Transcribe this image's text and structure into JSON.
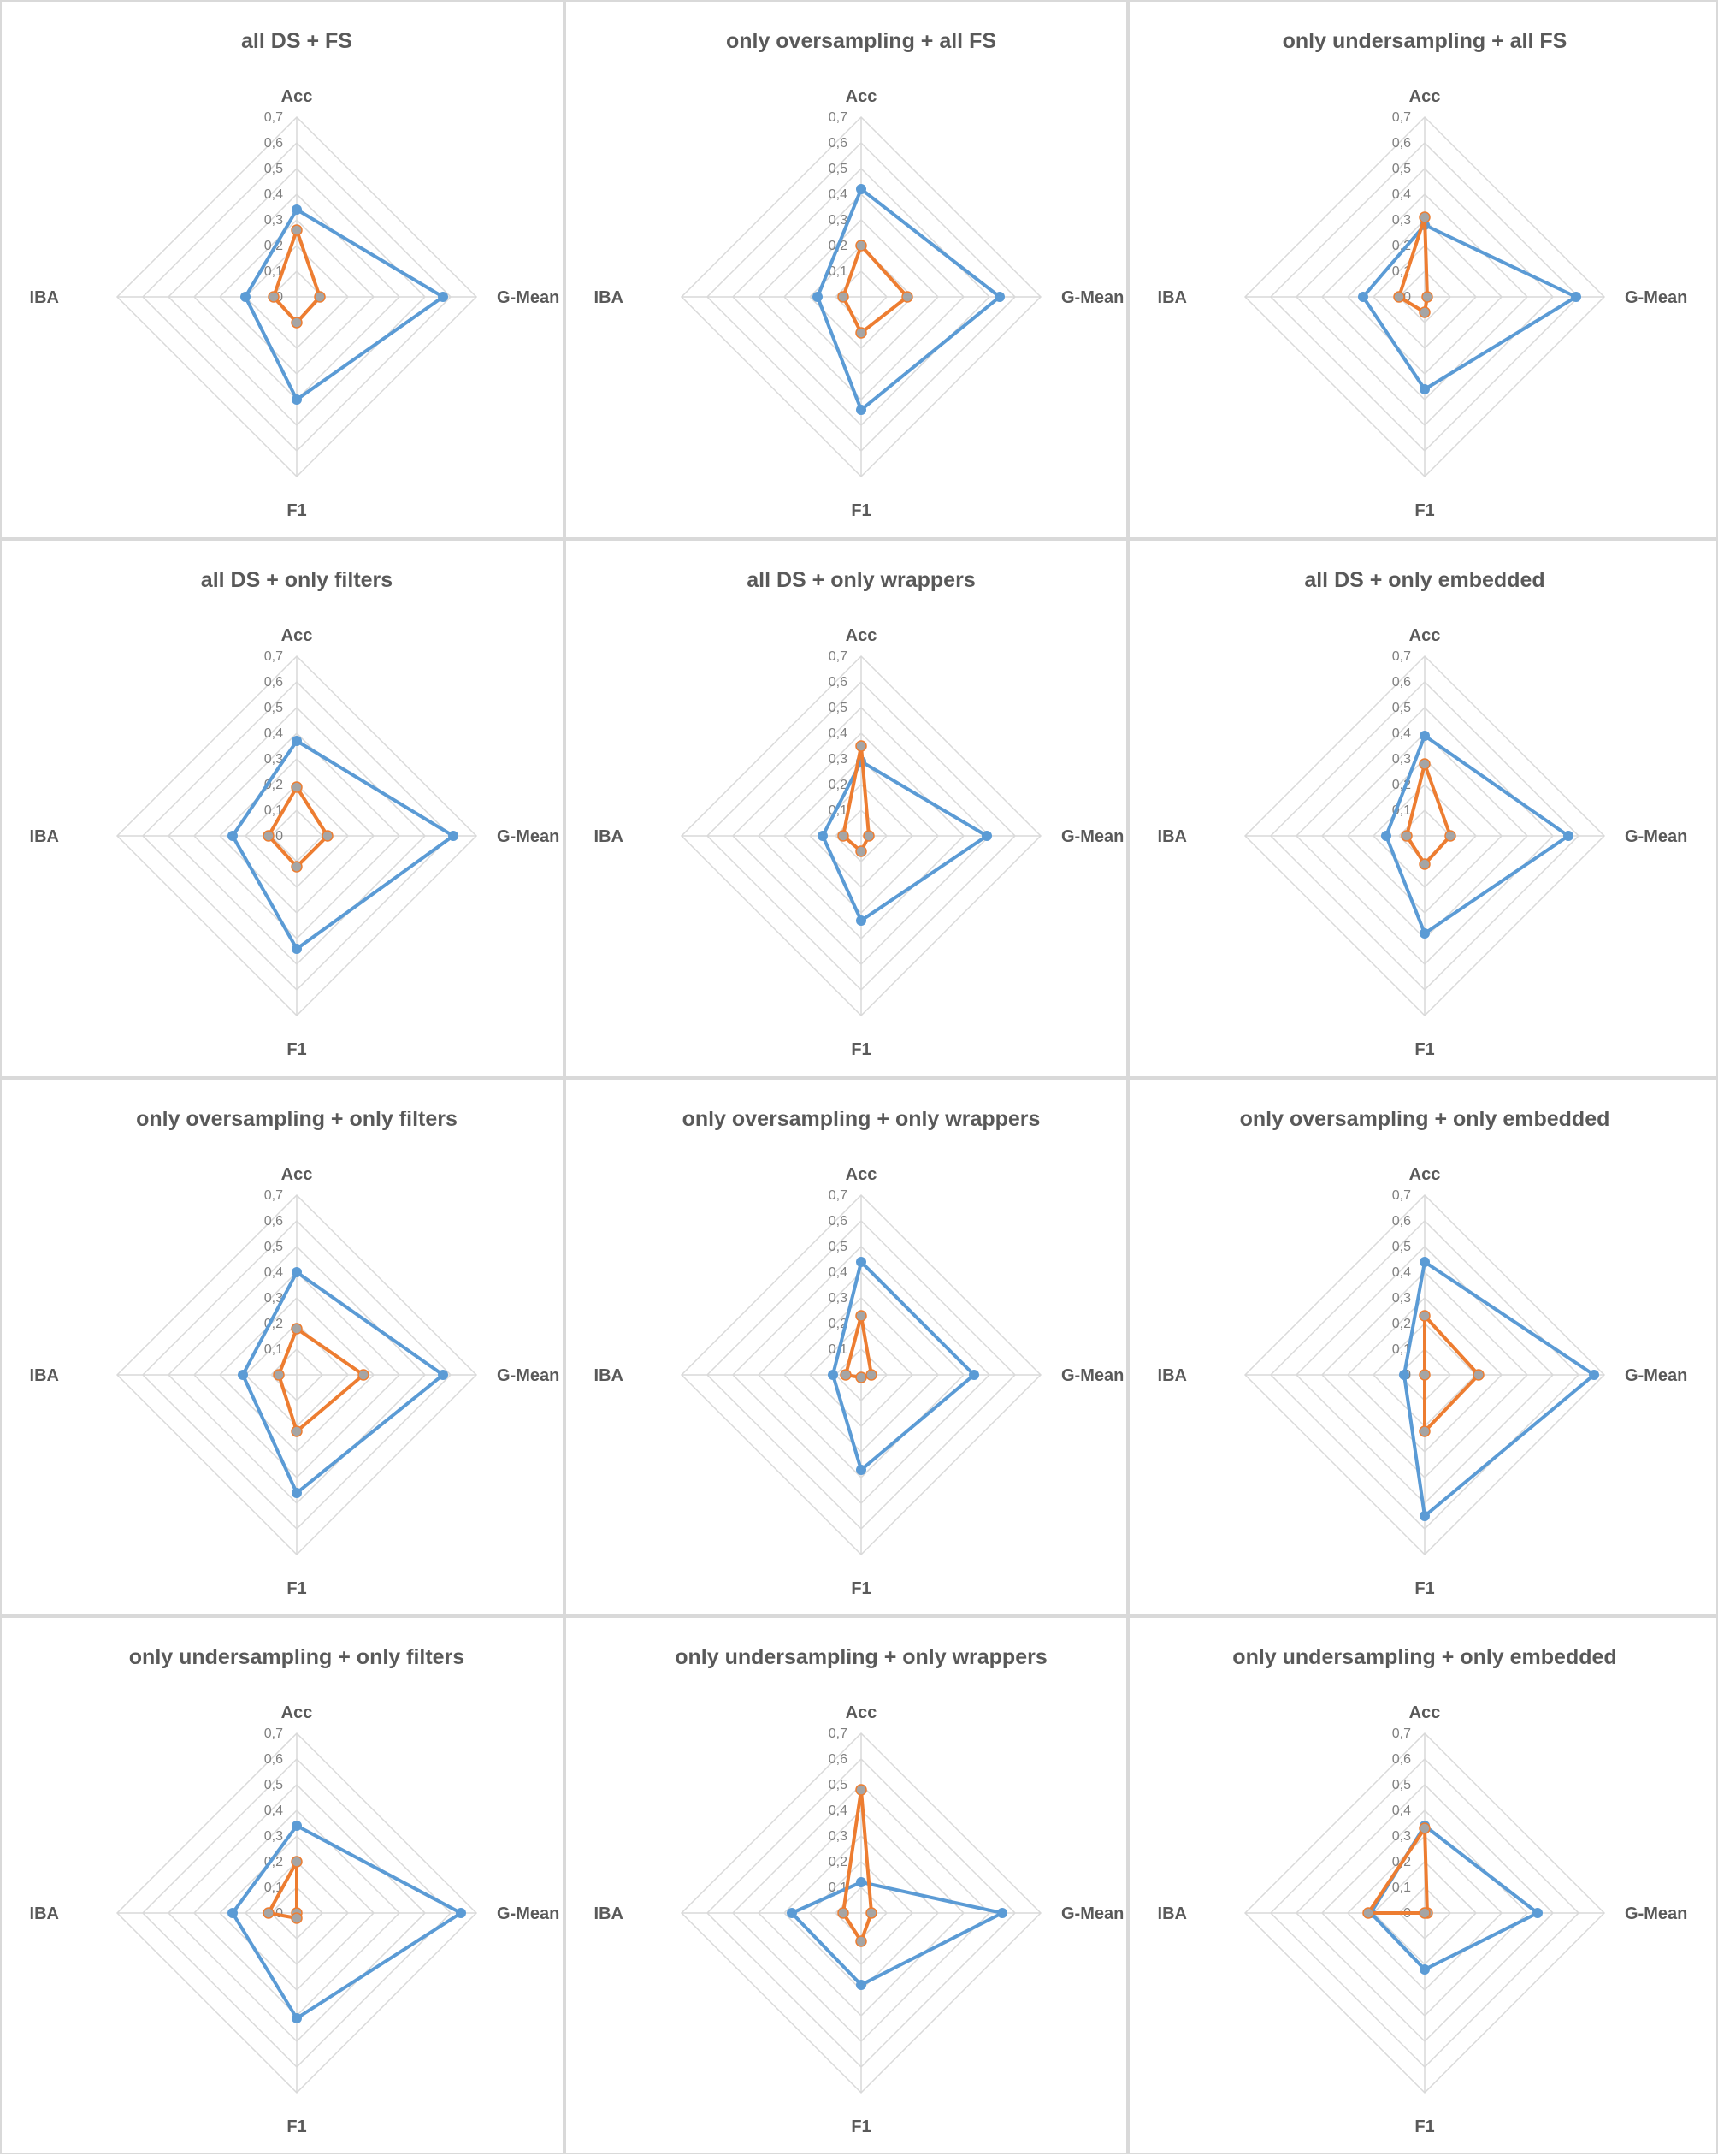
{
  "colors": {
    "series_blue": "#5b9bd5",
    "series_orange": "#ed7d31",
    "grid": "#d9d9d9",
    "text": "#595959"
  },
  "chart_data": [
    {
      "type": "radar",
      "title": "all DS + FS",
      "axes": [
        "Acc",
        "G-Mean",
        "F1",
        "IBA"
      ],
      "ticks": [
        "0",
        "0,1",
        "0,2",
        "0,3",
        "0,4",
        "0,5",
        "0,6",
        "0,7"
      ],
      "rmax": 0.7,
      "series": [
        {
          "name": "blue",
          "values": [
            0.34,
            0.57,
            0.4,
            0.2
          ]
        },
        {
          "name": "orange",
          "values": [
            0.26,
            0.09,
            0.1,
            0.09
          ]
        }
      ]
    },
    {
      "type": "radar",
      "title": "only oversampling + all FS",
      "axes": [
        "Acc",
        "G-Mean",
        "F1",
        "IBA"
      ],
      "ticks": [
        "0",
        "0,1",
        "0,2",
        "0,3",
        "0,4",
        "0,5",
        "0,6",
        "0,7"
      ],
      "rmax": 0.7,
      "series": [
        {
          "name": "blue",
          "values": [
            0.42,
            0.54,
            0.44,
            0.17
          ]
        },
        {
          "name": "orange",
          "values": [
            0.2,
            0.18,
            0.14,
            0.07
          ]
        }
      ]
    },
    {
      "type": "radar",
      "title": "only undersampling + all FS",
      "axes": [
        "Acc",
        "G-Mean",
        "F1",
        "IBA"
      ],
      "ticks": [
        "0",
        "0,1",
        "0,2",
        "0,3",
        "0,4",
        "0,5",
        "0,6",
        "0,7"
      ],
      "rmax": 0.7,
      "series": [
        {
          "name": "blue",
          "values": [
            0.28,
            0.59,
            0.36,
            0.24
          ]
        },
        {
          "name": "orange",
          "values": [
            0.31,
            0.01,
            0.06,
            0.1
          ]
        }
      ]
    },
    {
      "type": "radar",
      "title": "all DS + only filters",
      "axes": [
        "Acc",
        "G-Mean",
        "F1",
        "IBA"
      ],
      "ticks": [
        "0",
        "0,1",
        "0,2",
        "0,3",
        "0,4",
        "0,5",
        "0,6",
        "0,7"
      ],
      "rmax": 0.7,
      "series": [
        {
          "name": "blue",
          "values": [
            0.37,
            0.61,
            0.44,
            0.25
          ]
        },
        {
          "name": "orange",
          "values": [
            0.19,
            0.12,
            0.12,
            0.11
          ]
        }
      ]
    },
    {
      "type": "radar",
      "title": "all DS + only wrappers",
      "axes": [
        "Acc",
        "G-Mean",
        "F1",
        "IBA"
      ],
      "ticks": [
        "0",
        "0,1",
        "0,2",
        "0,3",
        "0,4",
        "0,5",
        "0,6",
        "0,7"
      ],
      "rmax": 0.7,
      "series": [
        {
          "name": "blue",
          "values": [
            0.29,
            0.49,
            0.33,
            0.15
          ]
        },
        {
          "name": "orange",
          "values": [
            0.35,
            0.03,
            0.06,
            0.07
          ]
        }
      ]
    },
    {
      "type": "radar",
      "title": "all DS + only embedded",
      "axes": [
        "Acc",
        "G-Mean",
        "F1",
        "IBA"
      ],
      "ticks": [
        "0",
        "0,1",
        "0,2",
        "0,3",
        "0,4",
        "0,5",
        "0,6",
        "0,7"
      ],
      "rmax": 0.7,
      "series": [
        {
          "name": "blue",
          "values": [
            0.39,
            0.56,
            0.38,
            0.15
          ]
        },
        {
          "name": "orange",
          "values": [
            0.28,
            0.1,
            0.11,
            0.07
          ]
        }
      ]
    },
    {
      "type": "radar",
      "title": "only oversampling + only filters",
      "axes": [
        "Acc",
        "G-Mean",
        "F1",
        "IBA"
      ],
      "ticks": [
        "0",
        "0,1",
        "0,2",
        "0,3",
        "0,4",
        "0,5",
        "0,6",
        "0,7"
      ],
      "rmax": 0.7,
      "series": [
        {
          "name": "blue",
          "values": [
            0.4,
            0.57,
            0.46,
            0.21
          ]
        },
        {
          "name": "orange",
          "values": [
            0.18,
            0.26,
            0.22,
            0.07
          ]
        }
      ]
    },
    {
      "type": "radar",
      "title": "only oversampling + only wrappers",
      "axes": [
        "Acc",
        "G-Mean",
        "F1",
        "IBA"
      ],
      "ticks": [
        "0",
        "0,1",
        "0,2",
        "0,3",
        "0,4",
        "0,5",
        "0,6",
        "0,7"
      ],
      "rmax": 0.7,
      "series": [
        {
          "name": "blue",
          "values": [
            0.44,
            0.44,
            0.37,
            0.11
          ]
        },
        {
          "name": "orange",
          "values": [
            0.23,
            0.04,
            0.01,
            0.06
          ]
        }
      ]
    },
    {
      "type": "radar",
      "title": "only oversampling + only embedded",
      "axes": [
        "Acc",
        "G-Mean",
        "F1",
        "IBA"
      ],
      "ticks": [
        "0",
        "0,1",
        "0,2",
        "0,3",
        "0,4",
        "0,5",
        "0,6",
        "0,7"
      ],
      "rmax": 0.7,
      "series": [
        {
          "name": "blue",
          "values": [
            0.44,
            0.66,
            0.55,
            0.08
          ]
        },
        {
          "name": "orange",
          "values": [
            0.23,
            0.21,
            0.22,
            0.0
          ]
        }
      ]
    },
    {
      "type": "radar",
      "title": "only undersampling + only filters",
      "axes": [
        "Acc",
        "G-Mean",
        "F1",
        "IBA"
      ],
      "ticks": [
        "0",
        "0,1",
        "0,2",
        "0,3",
        "0,4",
        "0,5",
        "0,6",
        "0,7"
      ],
      "rmax": 0.7,
      "series": [
        {
          "name": "blue",
          "values": [
            0.34,
            0.64,
            0.41,
            0.25
          ]
        },
        {
          "name": "orange",
          "values": [
            0.2,
            0.0,
            0.02,
            0.11
          ]
        }
      ]
    },
    {
      "type": "radar",
      "title": "only undersampling + only wrappers",
      "axes": [
        "Acc",
        "G-Mean",
        "F1",
        "IBA"
      ],
      "ticks": [
        "0",
        "0,1",
        "0,2",
        "0,3",
        "0,4",
        "0,5",
        "0,6",
        "0,7"
      ],
      "rmax": 0.7,
      "series": [
        {
          "name": "blue",
          "values": [
            0.12,
            0.55,
            0.28,
            0.27
          ]
        },
        {
          "name": "orange",
          "values": [
            0.48,
            0.04,
            0.11,
            0.07
          ]
        }
      ]
    },
    {
      "type": "radar",
      "title": "only undersampling + only embedded",
      "axes": [
        "Acc",
        "G-Mean",
        "F1",
        "IBA"
      ],
      "ticks": [
        "0",
        "0,1",
        "0,2",
        "0,3",
        "0,4",
        "0,5",
        "0,6",
        "0,7"
      ],
      "rmax": 0.7,
      "series": [
        {
          "name": "blue",
          "values": [
            0.34,
            0.44,
            0.22,
            0.21
          ]
        },
        {
          "name": "orange",
          "values": [
            0.33,
            0.01,
            0.0,
            0.22
          ]
        }
      ]
    }
  ]
}
